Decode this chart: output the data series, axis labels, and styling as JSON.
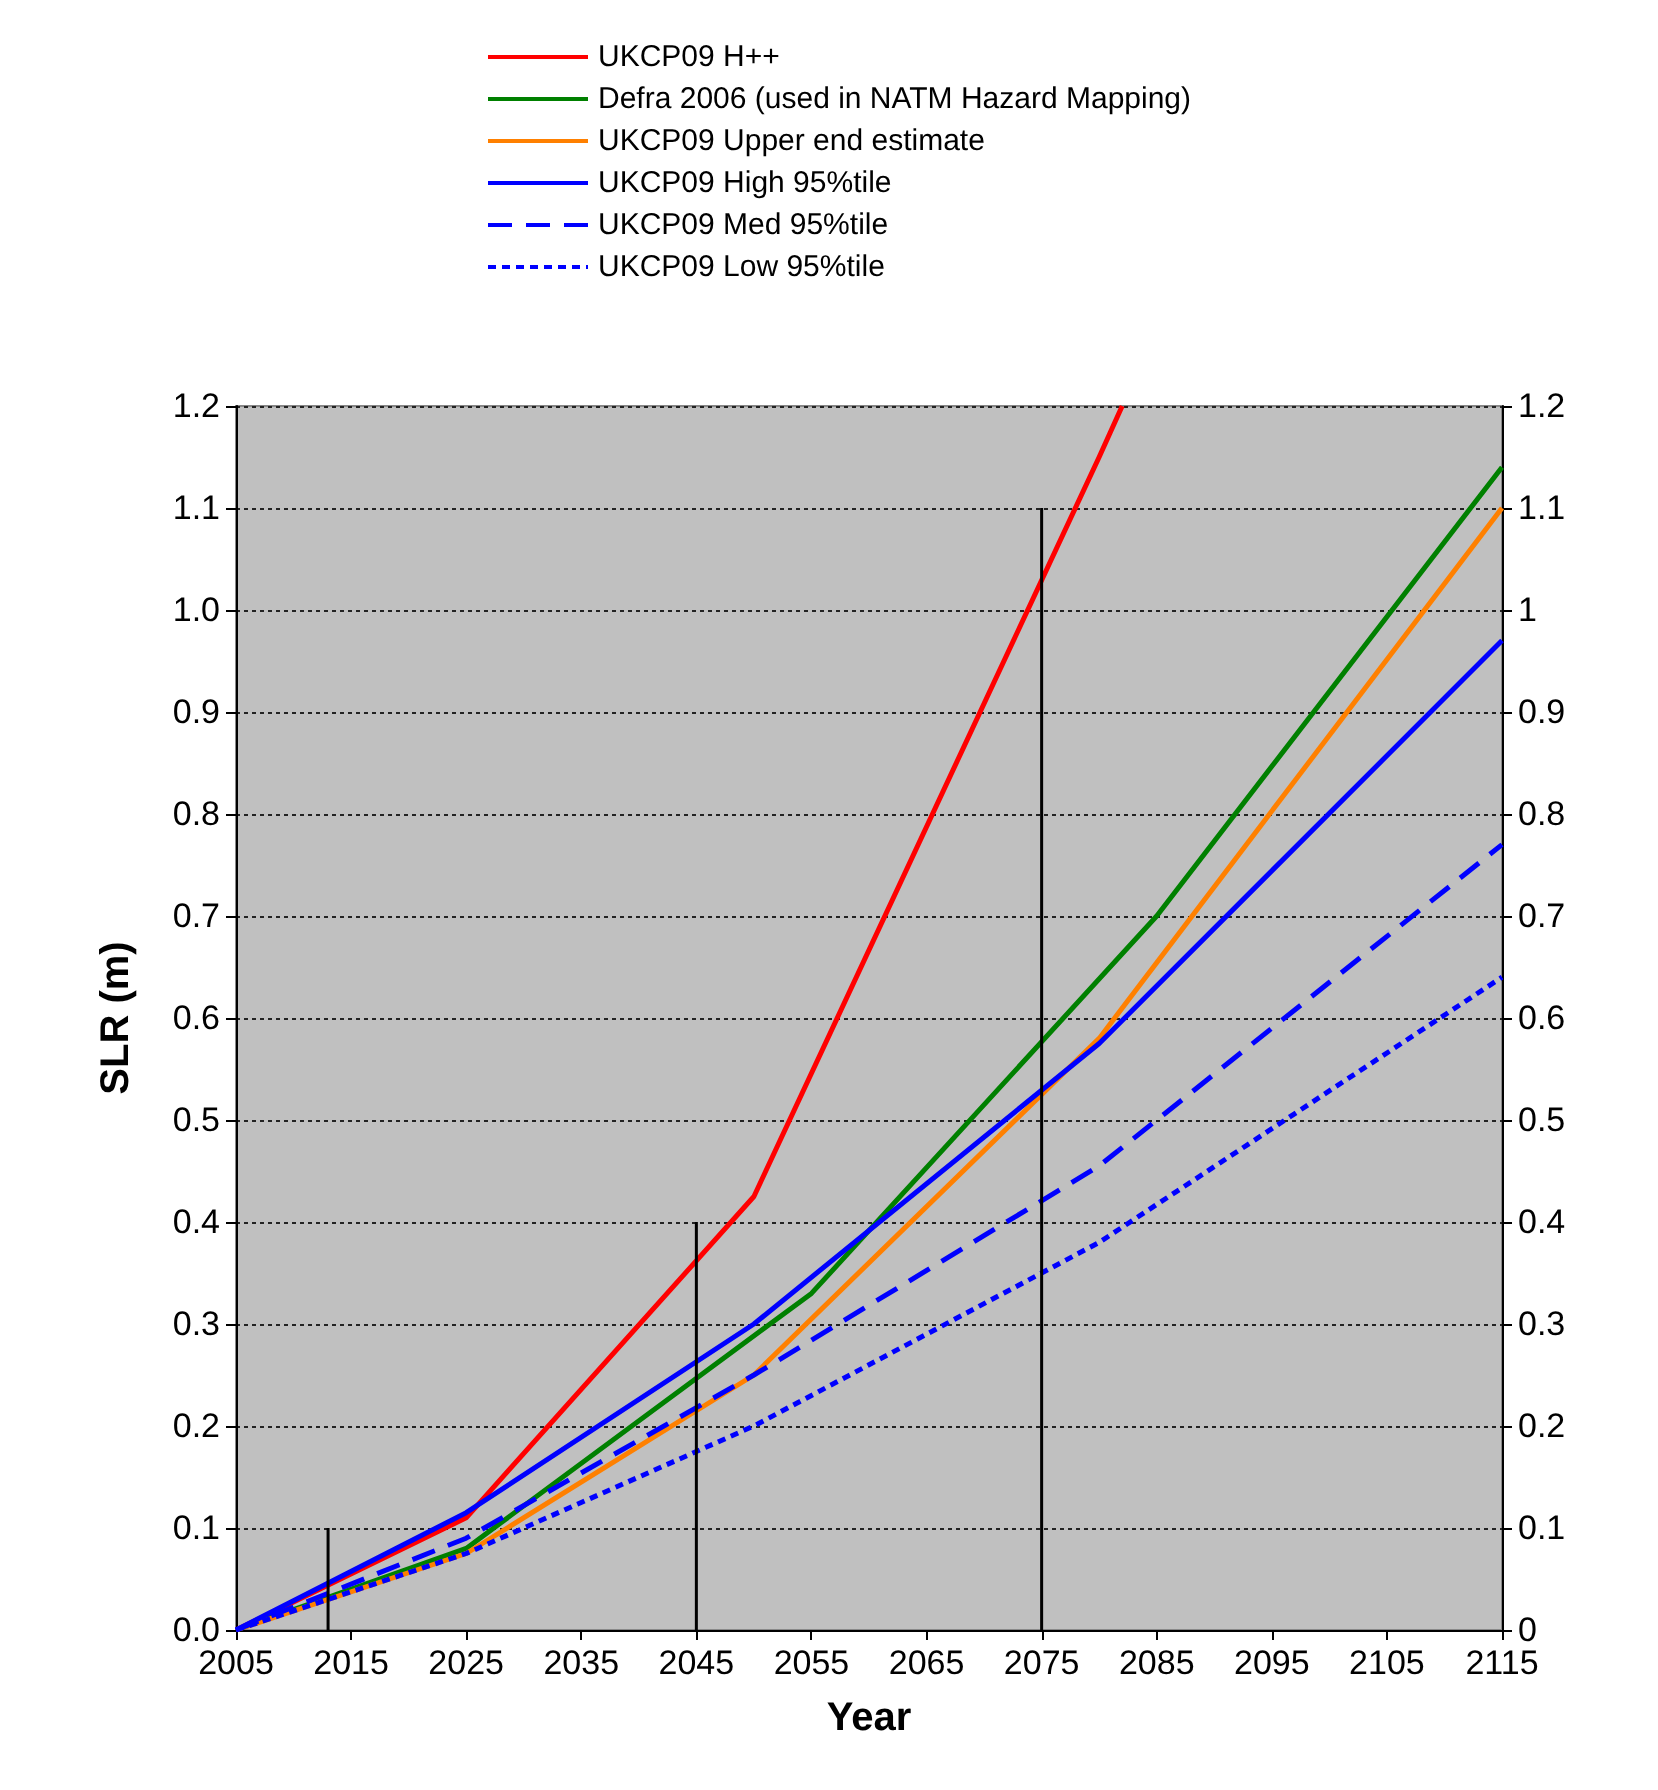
{
  "chart_data": {
    "type": "line",
    "xlabel": "Year",
    "ylabel": "SLR (m)",
    "xlim": [
      2005,
      2115
    ],
    "xticks": [
      2005,
      2015,
      2025,
      2035,
      2045,
      2055,
      2065,
      2075,
      2085,
      2095,
      2105,
      2115
    ],
    "ylim": [
      0,
      1.2
    ],
    "yticks": [
      {
        "value": 0,
        "label": "0.0"
      },
      0.1,
      0.2,
      0.3,
      0.4,
      0.5,
      0.6,
      0.7,
      0.8,
      0.9,
      {
        "value": 1,
        "label": "1.0"
      },
      1.1,
      1.2
    ],
    "y2lim": [
      0,
      1.2
    ],
    "y2ticks": [
      0,
      0.1,
      0.2,
      0.3,
      0.4,
      0.5,
      0.6,
      0.7,
      0.8,
      0.9,
      1,
      1.1,
      1.2
    ],
    "grid": "y",
    "legend": "top",
    "marker": "none",
    "series": [
      {
        "name": "UKCP09 H++",
        "color": "#ff0000",
        "line_style": "solid",
        "x": [
          2005,
          2025,
          2050,
          2080,
          2082
        ],
        "values": [
          0,
          0.11,
          0.425,
          1.15,
          1.2
        ]
      },
      {
        "name": "Defra 2006 (used in NATM Hazard Mapping)",
        "color": "#008000",
        "line_style": "solid",
        "x": [
          2005,
          2025,
          2055,
          2085,
          2115
        ],
        "values": [
          0,
          0.08,
          0.33,
          0.7,
          1.14
        ]
      },
      {
        "name": "UKCP09 Upper end estimate",
        "color": "#ff8000",
        "line_style": "solid",
        "x": [
          2005,
          2025,
          2050,
          2080,
          2115
        ],
        "values": [
          0,
          0.075,
          0.25,
          0.58,
          1.1
        ]
      },
      {
        "name": "UKCP09 High 95%tile",
        "color": "#0000ff",
        "line_style": "solid",
        "x": [
          2005,
          2025,
          2050,
          2080,
          2115
        ],
        "values": [
          0,
          0.115,
          0.3,
          0.575,
          0.97
        ]
      },
      {
        "name": "UKCP09 Med 95%tile",
        "color": "#0000ff",
        "line_style": "dashed",
        "x": [
          2005,
          2025,
          2050,
          2080,
          2115
        ],
        "values": [
          0,
          0.09,
          0.25,
          0.455,
          0.77
        ]
      },
      {
        "name": "UKCP09 Low 95%tile",
        "color": "#0000ff",
        "line_style": "dotted",
        "x": [
          2005,
          2025,
          2050,
          2080,
          2115
        ],
        "values": [
          0,
          0.075,
          0.2,
          0.38,
          0.64
        ]
      },
      {
        "color": "#000000",
        "line_style": "solid",
        "x": [
          2013,
          2013
        ],
        "values": [
          0,
          0.1
        ]
      },
      {
        "color": "#000000",
        "line_style": "solid",
        "x": [
          2045,
          2045
        ],
        "values": [
          0,
          0.4
        ]
      },
      {
        "color": "#000000",
        "line_style": "solid",
        "x": [
          2075,
          2075
        ],
        "values": [
          0,
          1.1
        ]
      }
    ]
  }
}
